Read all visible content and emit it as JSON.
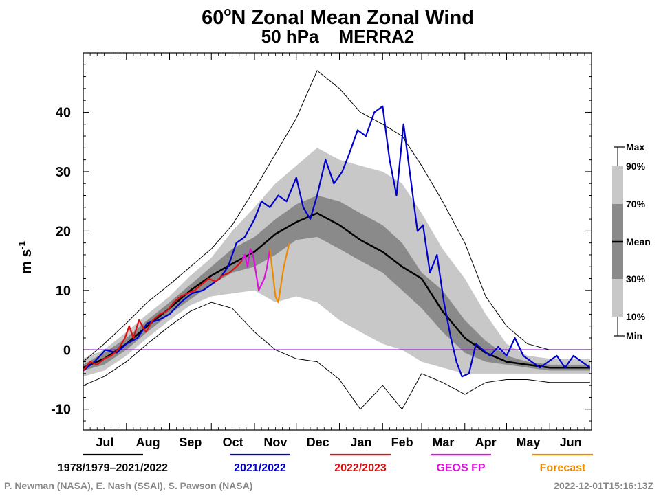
{
  "chart_data": {
    "type": "line",
    "title": "60",
    "title_superscript": "o",
    "title_rest": "N Zonal Mean Zonal Wind",
    "subtitle": "50 hPa    MERRA2",
    "ylabel_main": "m s",
    "ylabel_sup": "-1",
    "ylim": [
      -13.5,
      50
    ],
    "yticks": [
      -10,
      0,
      10,
      20,
      30,
      40
    ],
    "ytick_labels": [
      "-10",
      "0",
      "10",
      "20",
      "30",
      "40"
    ],
    "xlim": [
      0,
      365
    ],
    "month_labels": [
      "Jul",
      "Aug",
      "Sep",
      "Oct",
      "Nov",
      "Dec",
      "Jan",
      "Feb",
      "Mar",
      "Apr",
      "May",
      "Jun"
    ],
    "month_starts": [
      0,
      31,
      62,
      92,
      123,
      153,
      184,
      215,
      243,
      274,
      304,
      335,
      365
    ],
    "zero_line": 0,
    "legend": [
      {
        "label": "1978/1979–2021/2022",
        "color": "#000000"
      },
      {
        "label": "2021/2022",
        "color": "#0000cc"
      },
      {
        "label": "2022/2023",
        "color": "#dd1111"
      },
      {
        "label": "GEOS FP",
        "color": "#dd11dd"
      },
      {
        "label": "Forecast",
        "color": "#ee8800"
      }
    ],
    "band_legend": [
      "Max",
      "90%",
      "70%",
      "Mean",
      "30%",
      "10%",
      "Min"
    ],
    "footer_left": "P. Newman (NASA), E. Nash (SSAI), S. Pawson (NASA)",
    "footer_right": "2022-12-01T15:16:13Z",
    "colors": {
      "band_outer": "#c8c8c8",
      "band_mid": "#b4b4b4",
      "band_inner": "#8a8a8a",
      "zero_line": "#8800cc"
    },
    "climatology": {
      "days": [
        0,
        15,
        31,
        46,
        62,
        77,
        92,
        107,
        123,
        138,
        153,
        168,
        184,
        199,
        215,
        229,
        243,
        258,
        274,
        289,
        304,
        319,
        335,
        350,
        364
      ],
      "mean": [
        -3,
        -1.5,
        1,
        4,
        7,
        10,
        12.5,
        14.5,
        16.5,
        19.5,
        21.5,
        23,
        21,
        18.5,
        16.5,
        14,
        12,
        6.5,
        2,
        -0.5,
        -2,
        -2.5,
        -3,
        -3,
        -3
      ],
      "p30": [
        -3.5,
        -2.5,
        0,
        3,
        6,
        8.5,
        11,
        13,
        14,
        16,
        18.5,
        19,
        17,
        15,
        13,
        10,
        7,
        3,
        -0.5,
        -2,
        -2.5,
        -3,
        -3.5,
        -3.5,
        -3.5
      ],
      "p70": [
        -2.5,
        -0.5,
        2,
        5,
        8,
        11,
        14,
        17,
        19,
        22,
        24.5,
        26,
        25,
        23,
        21,
        18,
        13,
        10,
        5,
        1.5,
        -1,
        -2,
        -2.5,
        -2.5,
        -2.5
      ],
      "p10": [
        -4.5,
        -3.5,
        -1,
        2,
        5,
        7.5,
        9,
        9.5,
        10,
        8,
        9,
        8,
        5,
        3,
        1,
        0,
        -2,
        -3,
        -4,
        -4,
        -4,
        -4,
        -4,
        -4,
        -4
      ],
      "p90": [
        -1.5,
        0,
        3,
        6,
        9,
        12.5,
        15.5,
        20,
        24,
        28,
        31,
        34,
        32,
        31,
        30,
        28,
        23,
        17,
        12,
        6,
        1,
        -1,
        -1.5,
        -1.5,
        -1.5
      ],
      "min": [
        -6,
        -4.5,
        -2,
        1,
        4,
        6.5,
        8,
        7,
        3,
        0,
        -1.5,
        -2,
        -5,
        -10,
        -6,
        -10,
        -4,
        -5.5,
        -7.5,
        -5.5,
        -5,
        -5,
        -5.5,
        -5.5,
        -5.5
      ],
      "max": [
        -2,
        1,
        4.5,
        8,
        11,
        14,
        17,
        21,
        27,
        33,
        39,
        47,
        44,
        40,
        38,
        36,
        31,
        25,
        18,
        9,
        4,
        1,
        0,
        0,
        0
      ]
    },
    "series_2021_2022": {
      "days": [
        0,
        8,
        16,
        24,
        31,
        39,
        46,
        54,
        62,
        70,
        78,
        86,
        92,
        98,
        104,
        110,
        116,
        123,
        128,
        134,
        140,
        146,
        153,
        158,
        163,
        168,
        174,
        180,
        186,
        191,
        197,
        203,
        209,
        215,
        220,
        225,
        230,
        235,
        240,
        244,
        249,
        254,
        259,
        264,
        268,
        272,
        277,
        282,
        287,
        292,
        298,
        304,
        310,
        316,
        322,
        328,
        334,
        340,
        346,
        352,
        358,
        364
      ],
      "values": [
        -3.5,
        -2,
        0,
        -0.5,
        1,
        2,
        4.5,
        5,
        6,
        8,
        9.5,
        10,
        11,
        12,
        14,
        18,
        19,
        22,
        25,
        24,
        26,
        25,
        29,
        24,
        22,
        26,
        32,
        28,
        30,
        33,
        37,
        36,
        40,
        41,
        32,
        26,
        38,
        29,
        20,
        21,
        13,
        16,
        8,
        2,
        -2,
        -4.5,
        -4,
        1,
        0,
        -1,
        0.5,
        -1,
        2,
        -1,
        -2,
        -3,
        -2,
        -1,
        -3,
        -1,
        -2,
        -3
      ]
    },
    "series_2022_2023": {
      "days": [
        0,
        5,
        10,
        15,
        20,
        25,
        30,
        33,
        36,
        40,
        45,
        50,
        55,
        60,
        65,
        70,
        75,
        80,
        85,
        90,
        95,
        100,
        105,
        110,
        114
      ],
      "values": [
        -3.5,
        -2,
        -2.5,
        -1.5,
        -1,
        0,
        2,
        4,
        2,
        5,
        3,
        5,
        6,
        6.5,
        8,
        9,
        9.5,
        10,
        11,
        12,
        11.5,
        12.5,
        13,
        14,
        15
      ]
    },
    "series_geos_fp": {
      "days": [
        114,
        116,
        118,
        120,
        122,
        124,
        126,
        128,
        130,
        132,
        134
      ],
      "values": [
        15,
        16,
        14,
        17,
        16,
        13,
        10,
        11,
        12,
        14,
        17
      ]
    },
    "series_forecast": {
      "days": [
        134,
        136,
        138,
        140,
        142,
        144,
        146,
        148
      ],
      "values": [
        17,
        13,
        9,
        8,
        11,
        14,
        16,
        18
      ]
    }
  }
}
